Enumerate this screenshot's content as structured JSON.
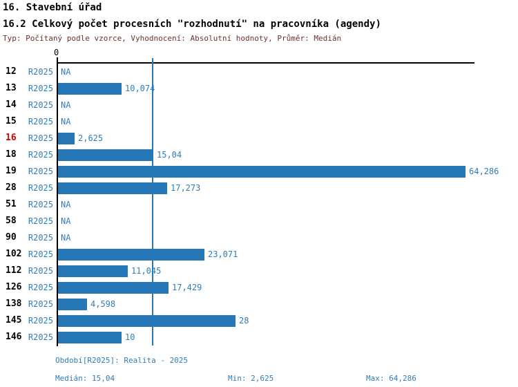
{
  "header": {
    "title": "16. Stavební úřad",
    "subtitle": "16.2 Celkový počet procesních \"rozhodnutí\" na pracovníka (agendy)",
    "meta": "Typ: Počítaný podle vzorce, Vyhodnocení: Absolutní hodnoty, Průměr: Medián"
  },
  "chart_data": {
    "type": "bar",
    "orientation": "horizontal",
    "axis_zero_label": "0",
    "categories": [
      "12",
      "13",
      "14",
      "15",
      "16",
      "18",
      "19",
      "28",
      "51",
      "58",
      "90",
      "102",
      "112",
      "126",
      "138",
      "145",
      "146"
    ],
    "highlighted_category": "16",
    "series_period": "R2025",
    "rows": [
      {
        "category": "12",
        "period": "R2025",
        "value": null,
        "label": "NA"
      },
      {
        "category": "13",
        "period": "R2025",
        "value": 10.074,
        "label": "10,074"
      },
      {
        "category": "14",
        "period": "R2025",
        "value": null,
        "label": "NA"
      },
      {
        "category": "15",
        "period": "R2025",
        "value": null,
        "label": "NA"
      },
      {
        "category": "16",
        "period": "R2025",
        "value": 2.625,
        "label": "2,625"
      },
      {
        "category": "18",
        "period": "R2025",
        "value": 15.04,
        "label": "15,04"
      },
      {
        "category": "19",
        "period": "R2025",
        "value": 64.286,
        "label": "64,286"
      },
      {
        "category": "28",
        "period": "R2025",
        "value": 17.273,
        "label": "17,273"
      },
      {
        "category": "51",
        "period": "R2025",
        "value": null,
        "label": "NA"
      },
      {
        "category": "58",
        "period": "R2025",
        "value": null,
        "label": "NA"
      },
      {
        "category": "90",
        "period": "R2025",
        "value": null,
        "label": "NA"
      },
      {
        "category": "102",
        "period": "R2025",
        "value": 23.071,
        "label": "23,071"
      },
      {
        "category": "112",
        "period": "R2025",
        "value": 11.045,
        "label": "11,045"
      },
      {
        "category": "126",
        "period": "R2025",
        "value": 17.429,
        "label": "17,429"
      },
      {
        "category": "138",
        "period": "R2025",
        "value": 4.598,
        "label": "4,598"
      },
      {
        "category": "145",
        "period": "R2025",
        "value": 28,
        "label": "28"
      },
      {
        "category": "146",
        "period": "R2025",
        "value": 10,
        "label": "10"
      }
    ],
    "median": 15.04,
    "min": 2.625,
    "max": 64.286,
    "xlim": [
      0,
      66
    ],
    "colors": {
      "bar": "#2577b5",
      "median_line": "#2577b5",
      "blue_text": "#2e7cb8",
      "highlight_text": "#d40000",
      "axis": "#000000",
      "meta_text": "#6e3030"
    }
  },
  "footer": {
    "period_info": "Období[R2025]: Realita - 2025",
    "median_label": "Medián: 15,04",
    "min_label": "Min: 2,625",
    "max_label": "Max: 64,286"
  }
}
